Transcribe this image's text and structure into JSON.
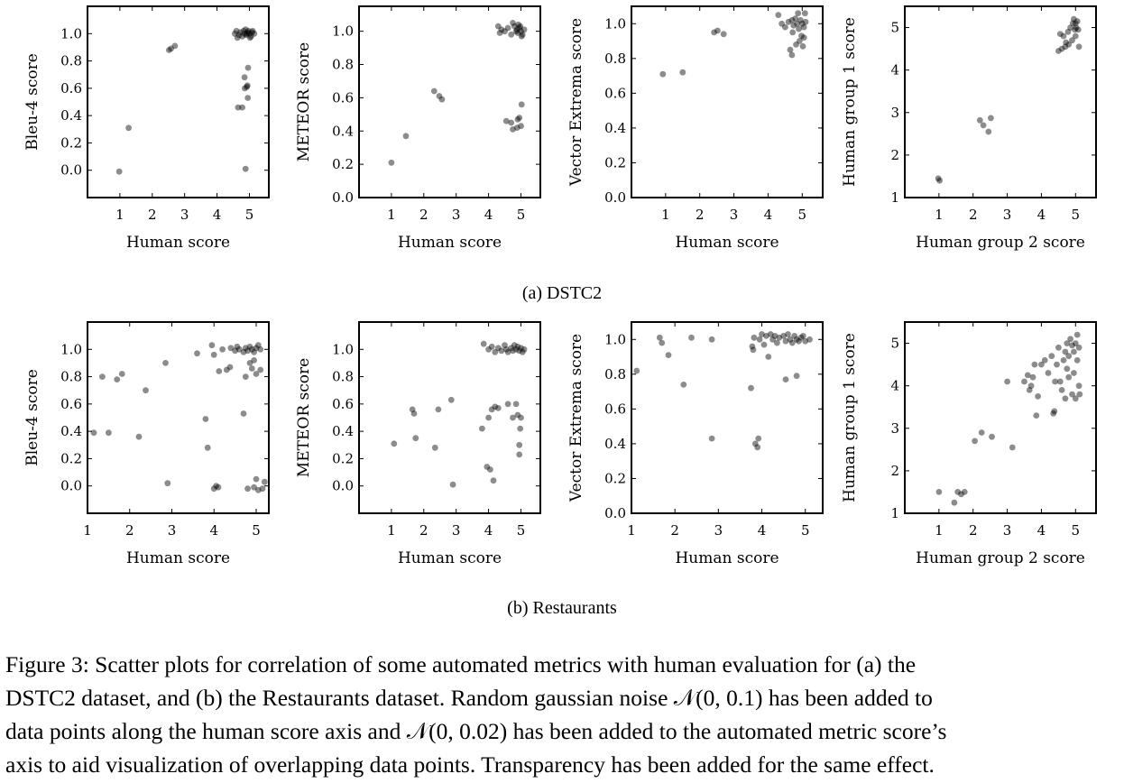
{
  "chart_data": [
    {
      "id": "a-bleu",
      "type": "scatter",
      "xlabel": "Human score",
      "ylabel": "Bleu-4 score",
      "xlim": [
        0,
        5.6
      ],
      "ylim": [
        -0.2,
        1.2
      ],
      "xticks": [
        1,
        2,
        3,
        4,
        5
      ],
      "yticks": [
        0.0,
        0.2,
        0.4,
        0.6,
        0.8,
        1.0
      ],
      "ydec": 1,
      "points": [
        [
          0.98,
          -0.01
        ],
        [
          1.27,
          0.31
        ],
        [
          2.52,
          0.88
        ],
        [
          2.58,
          0.89
        ],
        [
          2.7,
          0.91
        ],
        [
          4.55,
          1.0
        ],
        [
          4.6,
          1.02
        ],
        [
          4.68,
          0.99
        ],
        [
          4.72,
          1.01
        ],
        [
          4.78,
          0.98
        ],
        [
          4.82,
          1.02
        ],
        [
          4.85,
          1.0
        ],
        [
          4.9,
          0.99
        ],
        [
          4.95,
          1.01
        ],
        [
          5.0,
          1.0
        ],
        [
          5.05,
          0.98
        ],
        [
          5.1,
          1.02
        ],
        [
          5.15,
          1.0
        ],
        [
          4.63,
          0.97
        ],
        [
          4.88,
          1.03
        ],
        [
          5.02,
          0.97
        ],
        [
          4.92,
          1.0
        ],
        [
          4.97,
          1.02
        ],
        [
          5.08,
          1.01
        ],
        [
          4.65,
          0.46
        ],
        [
          4.78,
          0.46
        ],
        [
          4.86,
          0.6
        ],
        [
          4.92,
          0.61
        ],
        [
          4.94,
          0.62
        ],
        [
          4.96,
          0.75
        ],
        [
          4.95,
          0.53
        ],
        [
          4.85,
          0.68
        ],
        [
          4.88,
          0.01
        ]
      ]
    },
    {
      "id": "a-meteor",
      "type": "scatter",
      "xlabel": "Human score",
      "ylabel": "METEOR score",
      "xlim": [
        0,
        5.6
      ],
      "ylim": [
        0,
        1.15
      ],
      "xticks": [
        1,
        2,
        3,
        4,
        5
      ],
      "yticks": [
        0.0,
        0.2,
        0.4,
        0.6,
        0.8,
        1.0
      ],
      "ydec": 1,
      "points": [
        [
          1.0,
          0.21
        ],
        [
          1.45,
          0.37
        ],
        [
          2.32,
          0.64
        ],
        [
          2.48,
          0.61
        ],
        [
          2.56,
          0.59
        ],
        [
          4.3,
          1.03
        ],
        [
          4.35,
          0.99
        ],
        [
          4.4,
          1.01
        ],
        [
          4.5,
          1.0
        ],
        [
          4.6,
          1.02
        ],
        [
          4.7,
          0.98
        ],
        [
          4.8,
          1.03
        ],
        [
          4.85,
          1.0
        ],
        [
          4.9,
          0.99
        ],
        [
          4.95,
          1.02
        ],
        [
          5.0,
          1.0
        ],
        [
          5.05,
          0.98
        ],
        [
          5.1,
          1.01
        ],
        [
          4.75,
          1.05
        ],
        [
          4.92,
          1.04
        ],
        [
          5.02,
          0.97
        ],
        [
          4.88,
          1.01
        ],
        [
          4.98,
          1.03
        ],
        [
          4.55,
          0.46
        ],
        [
          4.7,
          0.45
        ],
        [
          4.75,
          0.41
        ],
        [
          4.88,
          0.42
        ],
        [
          4.9,
          0.47
        ],
        [
          5.0,
          0.43
        ],
        [
          5.02,
          0.56
        ],
        [
          4.95,
          0.48
        ]
      ]
    },
    {
      "id": "a-vector",
      "type": "scatter",
      "xlabel": "Human score",
      "ylabel": "Vector Extrema score",
      "xlim": [
        0,
        5.6
      ],
      "ylim": [
        0,
        1.1
      ],
      "xticks": [
        1,
        2,
        3,
        4,
        5
      ],
      "yticks": [
        0.0,
        0.2,
        0.4,
        0.6,
        0.8,
        1.0
      ],
      "ydec": 1,
      "points": [
        [
          0.92,
          0.71
        ],
        [
          1.5,
          0.72
        ],
        [
          2.42,
          0.95
        ],
        [
          2.52,
          0.96
        ],
        [
          2.7,
          0.94
        ],
        [
          4.3,
          1.05
        ],
        [
          4.4,
          1.0
        ],
        [
          4.5,
          0.98
        ],
        [
          4.6,
          1.01
        ],
        [
          4.7,
          1.02
        ],
        [
          4.75,
          0.99
        ],
        [
          4.8,
          1.03
        ],
        [
          4.85,
          1.0
        ],
        [
          4.9,
          0.97
        ],
        [
          4.95,
          1.02
        ],
        [
          5.0,
          1.0
        ],
        [
          5.05,
          0.98
        ],
        [
          5.1,
          1.01
        ],
        [
          4.88,
          1.06
        ],
        [
          5.08,
          1.06
        ],
        [
          4.65,
          0.85
        ],
        [
          4.7,
          0.82
        ],
        [
          4.82,
          0.88
        ],
        [
          4.92,
          0.9
        ],
        [
          5.02,
          0.87
        ],
        [
          5.05,
          0.92
        ],
        [
          4.72,
          0.95
        ],
        [
          4.98,
          0.93
        ]
      ]
    },
    {
      "id": "a-human",
      "type": "scatter",
      "xlabel": "Human group 2 score",
      "ylabel": "Human group 1 score",
      "xlim": [
        0,
        5.6
      ],
      "ylim": [
        1,
        5.5
      ],
      "xticks": [
        1,
        2,
        3,
        4,
        5
      ],
      "yticks": [
        1,
        2,
        3,
        4,
        5
      ],
      "ydec": 0,
      "points": [
        [
          0.98,
          1.45
        ],
        [
          1.02,
          1.4
        ],
        [
          2.2,
          2.82
        ],
        [
          2.3,
          2.7
        ],
        [
          2.45,
          2.55
        ],
        [
          2.52,
          2.87
        ],
        [
          4.5,
          4.45
        ],
        [
          4.6,
          4.5
        ],
        [
          4.65,
          4.8
        ],
        [
          4.7,
          4.55
        ],
        [
          4.72,
          4.65
        ],
        [
          4.78,
          4.9
        ],
        [
          4.8,
          4.6
        ],
        [
          4.85,
          5.0
        ],
        [
          4.9,
          4.7
        ],
        [
          4.92,
          5.1
        ],
        [
          4.95,
          5.2
        ],
        [
          5.0,
          4.8
        ],
        [
          5.02,
          5.0
        ],
        [
          5.05,
          5.15
        ],
        [
          5.08,
          4.95
        ],
        [
          5.1,
          4.55
        ],
        [
          4.55,
          4.85
        ],
        [
          4.98,
          4.95
        ],
        [
          5.0,
          5.1
        ]
      ]
    },
    {
      "id": "b-bleu",
      "type": "scatter",
      "xlabel": "Human score",
      "ylabel": "Bleu-4 score",
      "xlim": [
        1,
        5.3
      ],
      "ylim": [
        -0.2,
        1.2
      ],
      "xticks": [
        1,
        2,
        3,
        4,
        5
      ],
      "yticks": [
        0.0,
        0.2,
        0.4,
        0.6,
        0.8,
        1.0
      ],
      "ydec": 1,
      "points": [
        [
          1.15,
          0.39
        ],
        [
          1.35,
          0.8
        ],
        [
          1.5,
          0.39
        ],
        [
          1.7,
          0.78
        ],
        [
          1.82,
          0.82
        ],
        [
          2.22,
          0.36
        ],
        [
          2.38,
          0.7
        ],
        [
          2.85,
          0.9
        ],
        [
          2.9,
          0.02
        ],
        [
          3.6,
          0.97
        ],
        [
          3.8,
          0.49
        ],
        [
          3.85,
          0.28
        ],
        [
          3.95,
          1.03
        ],
        [
          4.0,
          -0.02
        ],
        [
          4.05,
          0.0
        ],
        [
          4.1,
          -0.01
        ],
        [
          4.0,
          0.96
        ],
        [
          4.12,
          0.84
        ],
        [
          4.2,
          1.0
        ],
        [
          4.3,
          0.85
        ],
        [
          4.38,
          0.87
        ],
        [
          4.4,
          1.01
        ],
        [
          4.5,
          0.99
        ],
        [
          4.55,
          1.02
        ],
        [
          4.6,
          1.0
        ],
        [
          4.7,
          0.98
        ],
        [
          4.75,
          1.01
        ],
        [
          4.8,
          0.99
        ],
        [
          4.85,
          1.02
        ],
        [
          4.9,
          1.0
        ],
        [
          4.95,
          0.98
        ],
        [
          5.0,
          1.01
        ],
        [
          5.05,
          1.03
        ],
        [
          5.1,
          1.0
        ],
        [
          4.75,
          0.8
        ],
        [
          4.85,
          0.9
        ],
        [
          4.9,
          0.86
        ],
        [
          4.95,
          0.92
        ],
        [
          5.0,
          0.82
        ],
        [
          5.1,
          0.85
        ],
        [
          4.7,
          0.53
        ],
        [
          4.8,
          -0.02
        ],
        [
          4.95,
          -0.01
        ],
        [
          5.0,
          0.05
        ],
        [
          5.05,
          -0.03
        ],
        [
          5.15,
          -0.02
        ],
        [
          5.2,
          0.03
        ]
      ]
    },
    {
      "id": "b-meteor",
      "type": "scatter",
      "xlabel": "Human score",
      "ylabel": "METEOR score",
      "xlim": [
        0,
        5.6
      ],
      "ylim": [
        -0.2,
        1.2
      ],
      "xticks": [
        1,
        2,
        3,
        4,
        5
      ],
      "yticks": [
        0.0,
        0.2,
        0.4,
        0.6,
        0.8,
        1.0
      ],
      "ydec": 1,
      "points": [
        [
          1.08,
          0.31
        ],
        [
          1.65,
          0.56
        ],
        [
          1.7,
          0.53
        ],
        [
          1.75,
          0.35
        ],
        [
          2.35,
          0.28
        ],
        [
          2.45,
          0.56
        ],
        [
          2.85,
          0.63
        ],
        [
          2.9,
          0.01
        ],
        [
          3.8,
          0.42
        ],
        [
          3.95,
          0.14
        ],
        [
          4.0,
          0.5
        ],
        [
          4.05,
          0.12
        ],
        [
          4.1,
          0.56
        ],
        [
          4.15,
          0.04
        ],
        [
          4.2,
          0.58
        ],
        [
          4.3,
          0.57
        ],
        [
          4.6,
          0.6
        ],
        [
          4.75,
          0.5
        ],
        [
          4.85,
          0.6
        ],
        [
          4.9,
          0.52
        ],
        [
          4.95,
          0.3
        ],
        [
          4.95,
          0.23
        ],
        [
          5.0,
          0.5
        ],
        [
          4.98,
          0.42
        ],
        [
          3.85,
          1.04
        ],
        [
          4.0,
          1.0
        ],
        [
          4.1,
          1.02
        ],
        [
          4.2,
          0.98
        ],
        [
          4.3,
          1.01
        ],
        [
          4.4,
          0.99
        ],
        [
          4.5,
          1.03
        ],
        [
          4.55,
          1.0
        ],
        [
          4.6,
          0.98
        ],
        [
          4.7,
          1.01
        ],
        [
          4.75,
          0.99
        ],
        [
          4.8,
          1.03
        ],
        [
          4.85,
          1.0
        ],
        [
          4.9,
          1.02
        ],
        [
          4.95,
          0.99
        ],
        [
          5.0,
          1.01
        ],
        [
          5.05,
          0.98
        ],
        [
          5.1,
          1.0
        ]
      ]
    },
    {
      "id": "b-vector",
      "type": "scatter",
      "xlabel": "Human score",
      "ylabel": "Vector Extrema score",
      "xlim": [
        1,
        5.4
      ],
      "ylim": [
        0,
        1.1
      ],
      "xticks": [
        1,
        2,
        3,
        4,
        5
      ],
      "yticks": [
        0.0,
        0.2,
        0.4,
        0.6,
        0.8,
        1.0
      ],
      "ydec": 1,
      "points": [
        [
          1.12,
          0.82
        ],
        [
          1.65,
          1.01
        ],
        [
          1.7,
          0.98
        ],
        [
          1.85,
          0.91
        ],
        [
          2.2,
          0.74
        ],
        [
          2.38,
          1.01
        ],
        [
          2.85,
          1.0
        ],
        [
          2.85,
          0.43
        ],
        [
          3.75,
          0.72
        ],
        [
          3.78,
          0.96
        ],
        [
          3.82,
          1.01
        ],
        [
          3.85,
          0.4
        ],
        [
          3.9,
          0.38
        ],
        [
          3.92,
          0.43
        ],
        [
          3.95,
          1.0
        ],
        [
          4.0,
          1.03
        ],
        [
          4.05,
          0.97
        ],
        [
          4.1,
          1.02
        ],
        [
          4.15,
          0.9
        ],
        [
          4.2,
          1.03
        ],
        [
          4.25,
          1.0
        ],
        [
          4.3,
          1.02
        ],
        [
          4.35,
          0.98
        ],
        [
          4.4,
          1.01
        ],
        [
          4.5,
          1.02
        ],
        [
          4.55,
          0.99
        ],
        [
          4.6,
          1.03
        ],
        [
          4.65,
          1.0
        ],
        [
          4.7,
          0.98
        ],
        [
          4.75,
          1.02
        ],
        [
          4.8,
          1.0
        ],
        [
          4.85,
          0.99
        ],
        [
          4.9,
          1.01
        ],
        [
          4.95,
          1.02
        ],
        [
          5.0,
          0.99
        ],
        [
          5.1,
          1.0
        ],
        [
          4.55,
          0.77
        ],
        [
          4.8,
          0.79
        ],
        [
          3.8,
          0.94
        ]
      ]
    },
    {
      "id": "b-human",
      "type": "scatter",
      "xlabel": "Human group 2 score",
      "ylabel": "Human group 1 score",
      "xlim": [
        0,
        5.6
      ],
      "ylim": [
        1,
        5.5
      ],
      "xticks": [
        1,
        2,
        3,
        4,
        5
      ],
      "yticks": [
        1,
        2,
        3,
        4,
        5
      ],
      "ydec": 0,
      "points": [
        [
          1.0,
          1.5
        ],
        [
          1.45,
          1.25
        ],
        [
          1.55,
          1.5
        ],
        [
          1.65,
          1.45
        ],
        [
          1.75,
          1.5
        ],
        [
          2.05,
          2.7
        ],
        [
          2.25,
          2.9
        ],
        [
          2.55,
          2.8
        ],
        [
          3.0,
          4.1
        ],
        [
          3.15,
          2.55
        ],
        [
          3.5,
          4.1
        ],
        [
          3.6,
          4.25
        ],
        [
          3.65,
          3.9
        ],
        [
          3.7,
          4.0
        ],
        [
          3.75,
          4.2
        ],
        [
          3.8,
          4.5
        ],
        [
          3.85,
          3.3
        ],
        [
          3.9,
          3.75
        ],
        [
          4.0,
          4.5
        ],
        [
          4.1,
          4.6
        ],
        [
          4.2,
          4.3
        ],
        [
          4.3,
          4.7
        ],
        [
          4.35,
          3.35
        ],
        [
          4.38,
          3.4
        ],
        [
          4.4,
          4.1
        ],
        [
          4.45,
          4.5
        ],
        [
          4.5,
          4.9
        ],
        [
          4.55,
          4.1
        ],
        [
          4.6,
          3.9
        ],
        [
          4.65,
          4.6
        ],
        [
          4.7,
          4.8
        ],
        [
          4.75,
          5.0
        ],
        [
          4.8,
          4.7
        ],
        [
          4.85,
          5.1
        ],
        [
          4.9,
          4.95
        ],
        [
          4.95,
          4.8
        ],
        [
          5.0,
          5.0
        ],
        [
          5.05,
          5.2
        ],
        [
          5.1,
          4.9
        ],
        [
          4.7,
          3.7
        ],
        [
          4.8,
          4.2
        ],
        [
          4.9,
          3.8
        ],
        [
          5.0,
          3.7
        ],
        [
          5.1,
          4.0
        ],
        [
          4.75,
          4.4
        ],
        [
          4.95,
          4.3
        ],
        [
          5.05,
          4.6
        ],
        [
          5.12,
          3.8
        ]
      ]
    }
  ],
  "subcaptions": {
    "a": "(a) DSTC2",
    "b": "(b) Restaurants"
  },
  "caption": {
    "line1": "Figure 3:  Scatter plots for correlation of some automated metrics with human evaluation for (a) the",
    "line2": "DSTC2 dataset, and (b) the Restaurants dataset.  Random gaussian noise 𝒩(0, 0.1) has been added to",
    "line3": "data points along the human score axis and 𝒩(0, 0.02) has been added to the automated metric score’s",
    "line4": "axis to aid visualization of overlapping data points. Transparency has been added for the same effect."
  }
}
